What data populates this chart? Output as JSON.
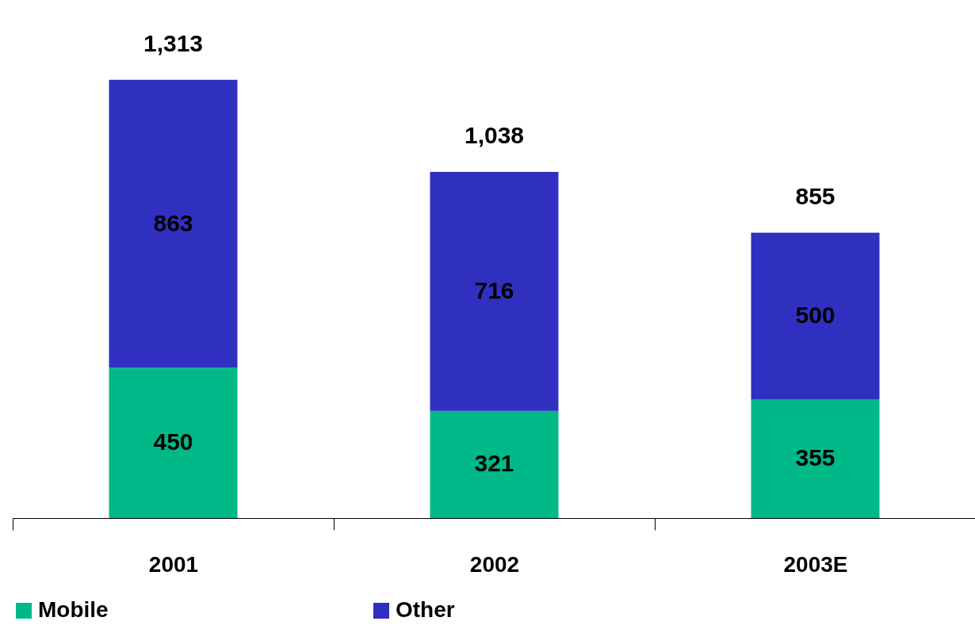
{
  "chart_data": {
    "type": "bar",
    "stacked": true,
    "categories": [
      "2001",
      "2002",
      "2003E"
    ],
    "series": [
      {
        "name": "Mobile",
        "color": "#00b888",
        "values": [
          450,
          321,
          355
        ]
      },
      {
        "name": "Other",
        "color": "#3030c0",
        "values": [
          863,
          716,
          500
        ]
      }
    ],
    "data_labels": true,
    "totals": [
      "1,313",
      "1,038",
      "855"
    ],
    "legend": "bottom",
    "grid": false
  }
}
